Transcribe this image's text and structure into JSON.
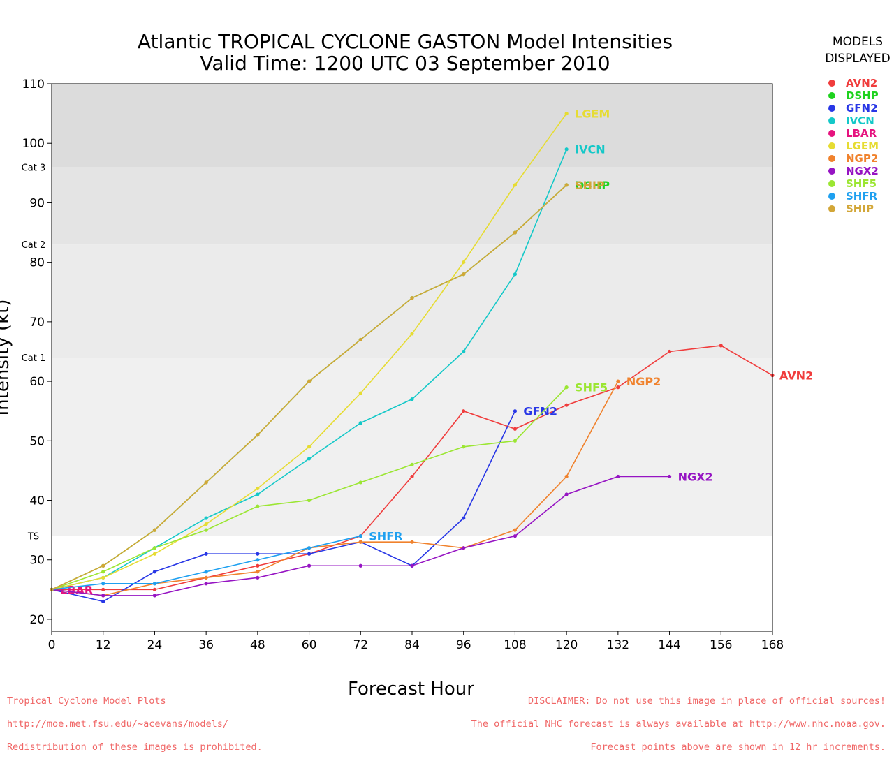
{
  "title": "Atlantic TROPICAL CYCLONE GASTON Model Intensities",
  "subtitle": "Valid Time: 1200 UTC 03 September 2010",
  "legend_title_1": "MODELS",
  "legend_title_2": "DISPLAYED",
  "footer_left": [
    "Tropical Cyclone Model Plots",
    "http://moe.met.fsu.edu/~acevans/models/",
    "Redistribution of these images is prohibited."
  ],
  "footer_right": [
    "DISCLAIMER: Do not use this image in place of official sources!",
    "The official NHC forecast is always available at http://www.nhc.noaa.gov.",
    "Forecast points above are shown in 12 hr increments."
  ],
  "chart_data": {
    "type": "line",
    "xlabel": "Forecast Hour",
    "ylabel": "Intensity (kt)",
    "xlim": [
      0,
      168
    ],
    "ylim": [
      18,
      110
    ],
    "xticks": [
      0,
      12,
      24,
      36,
      48,
      60,
      72,
      84,
      96,
      108,
      120,
      132,
      144,
      156,
      168
    ],
    "yticks": [
      20,
      30,
      40,
      50,
      60,
      70,
      80,
      90,
      100,
      110
    ],
    "bands": [
      {
        "label": "",
        "from": 18,
        "to": 34,
        "color": "#ffffff"
      },
      {
        "label": "TS",
        "from": 34,
        "to": 64,
        "color": "#f0f0f0"
      },
      {
        "label": "Cat 1",
        "from": 64,
        "to": 83,
        "color": "#ebebeb"
      },
      {
        "label": "Cat 2",
        "from": 83,
        "to": 96,
        "color": "#e4e4e4"
      },
      {
        "label": "Cat 3",
        "from": 96,
        "to": 110,
        "color": "#dcdcdc"
      }
    ],
    "series": [
      {
        "name": "AVN2",
        "color": "#f03c3c",
        "label": "AVN2",
        "x": [
          0,
          12,
          24,
          36,
          48,
          60,
          72,
          84,
          96,
          108,
          120,
          132,
          144,
          156,
          168
        ],
        "y": [
          25,
          25,
          25,
          27,
          29,
          31,
          34,
          44,
          55,
          52,
          56,
          59,
          65,
          66,
          61
        ]
      },
      {
        "name": "DSHP",
        "color": "#1ed21e",
        "label": "DSHP",
        "x": [
          0,
          12,
          24,
          36,
          48,
          60,
          72,
          84,
          96,
          108,
          120
        ],
        "y": [
          25,
          29,
          35,
          43,
          51,
          60,
          67,
          74,
          78,
          85,
          93
        ]
      },
      {
        "name": "GFN2",
        "color": "#2837e6",
        "label": "GFN2",
        "x": [
          0,
          12,
          24,
          36,
          48,
          60,
          72,
          84,
          96,
          108
        ],
        "y": [
          25,
          23,
          28,
          31,
          31,
          31,
          33,
          29,
          37,
          55
        ]
      },
      {
        "name": "IVCN",
        "color": "#14c8c8",
        "label": "IVCN",
        "x": [
          0,
          12,
          24,
          36,
          48,
          60,
          72,
          84,
          96,
          108,
          120
        ],
        "y": [
          25,
          27,
          32,
          37,
          41,
          47,
          53,
          57,
          65,
          78,
          99
        ]
      },
      {
        "name": "LBAR",
        "color": "#e6137f",
        "label": "LBAR",
        "x": [
          0
        ],
        "y": [
          25
        ]
      },
      {
        "name": "LGEM",
        "color": "#e6dc32",
        "label": "LGEM",
        "x": [
          0,
          12,
          24,
          36,
          48,
          60,
          72,
          84,
          96,
          108,
          120
        ],
        "y": [
          25,
          27,
          31,
          36,
          42,
          49,
          58,
          68,
          80,
          93,
          105
        ]
      },
      {
        "name": "NGP2",
        "color": "#f0822d",
        "label": "NGP2",
        "x": [
          0,
          12,
          24,
          36,
          48,
          60,
          72,
          84,
          96,
          108,
          120,
          132
        ],
        "y": [
          25,
          24,
          26,
          27,
          28,
          32,
          33,
          33,
          32,
          35,
          44,
          60
        ]
      },
      {
        "name": "NGX2",
        "color": "#9614c3",
        "label": "NGX2",
        "x": [
          0,
          12,
          24,
          36,
          48,
          60,
          72,
          84,
          96,
          108,
          120,
          132,
          144
        ],
        "y": [
          25,
          24,
          24,
          26,
          27,
          29,
          29,
          29,
          32,
          34,
          41,
          44,
          44
        ]
      },
      {
        "name": "SHF5",
        "color": "#9be632",
        "label": "SHF5",
        "x": [
          0,
          12,
          24,
          36,
          48,
          60,
          72,
          84,
          96,
          108,
          120
        ],
        "y": [
          25,
          28,
          32,
          35,
          39,
          40,
          43,
          46,
          49,
          50,
          59
        ]
      },
      {
        "name": "SHFR",
        "color": "#1ea0f0",
        "label": "SHFR",
        "x": [
          0,
          12,
          24,
          36,
          48,
          60,
          72
        ],
        "y": [
          25,
          26,
          26,
          28,
          30,
          32,
          34
        ]
      },
      {
        "name": "SHIP",
        "color": "#d2a637",
        "label": "SHIP",
        "x": [
          0,
          12,
          24,
          36,
          48,
          60,
          72,
          84,
          96,
          108,
          120
        ],
        "y": [
          25,
          29,
          35,
          43,
          51,
          60,
          67,
          74,
          78,
          85,
          93
        ]
      }
    ]
  }
}
